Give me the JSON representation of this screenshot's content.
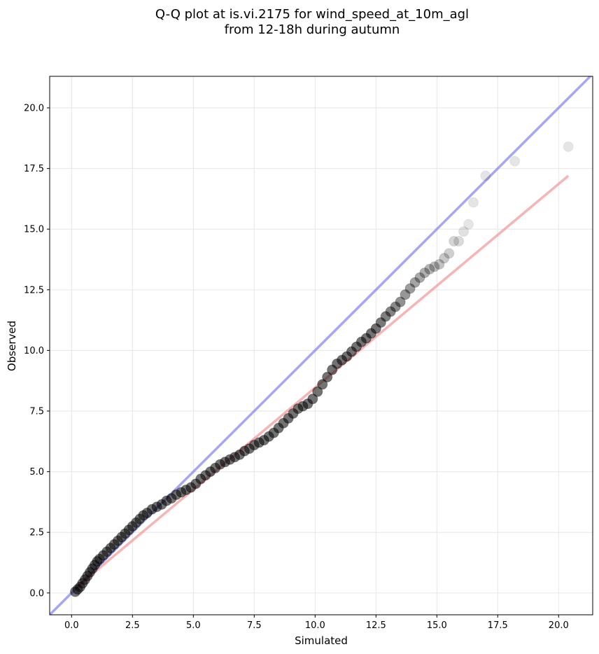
{
  "chart_data": {
    "type": "scatter",
    "title": [
      "Q-Q plot at is.vi.2175 for wind_speed_at_10m_agl",
      "from 12-18h during autumn"
    ],
    "xlabel": "Simulated",
    "ylabel": "Observed",
    "xlim": [
      -0.9,
      21.4
    ],
    "ylim": [
      -0.9,
      21.3
    ],
    "x_ticks": [
      "0.0",
      "2.5",
      "5.0",
      "7.5",
      "10.0",
      "12.5",
      "15.0",
      "17.5",
      "20.0"
    ],
    "y_ticks": [
      "0.0",
      "2.5",
      "5.0",
      "7.5",
      "10.0",
      "12.5",
      "15.0",
      "17.5",
      "20.0"
    ],
    "grid": true,
    "colors": {
      "points": "#000000",
      "identity_line": "#7777ee",
      "fit_line": "#f28c8c"
    },
    "reference_lines": [
      {
        "kind": "identity",
        "x": [
          -0.9,
          21.4
        ],
        "y": [
          -0.9,
          21.4
        ]
      },
      {
        "kind": "fit",
        "x": [
          0.1,
          20.4
        ],
        "y": [
          0.15,
          17.2
        ]
      }
    ],
    "series": [
      {
        "x": [
          0.15,
          0.25,
          0.35,
          0.45,
          0.55,
          0.65,
          0.75,
          0.85,
          0.95,
          1.05,
          1.15,
          1.3,
          1.45,
          1.6,
          1.75,
          1.9,
          2.05,
          2.2,
          2.35,
          2.5,
          2.65,
          2.8,
          2.95,
          3.1,
          3.3,
          3.5,
          3.7,
          3.9,
          4.1,
          4.3,
          4.5,
          4.7,
          4.9,
          5.1,
          5.3,
          5.5,
          5.7,
          5.9,
          6.1,
          6.3,
          6.5,
          6.7,
          6.9,
          7.1,
          7.3,
          7.5,
          7.7,
          7.9,
          8.1,
          8.3,
          8.5,
          8.7,
          8.9,
          9.1,
          9.3,
          9.5,
          9.7,
          9.9,
          10.1,
          10.3,
          10.5,
          10.7,
          10.9,
          11.1,
          11.3,
          11.5,
          11.7,
          11.9,
          12.1,
          12.3,
          12.5,
          12.7,
          12.9,
          13.1,
          13.3,
          13.5,
          13.7,
          13.9,
          14.1,
          14.3,
          14.5,
          14.7,
          14.9,
          15.1,
          15.3,
          15.5,
          15.7,
          15.9,
          16.1,
          16.3,
          16.5,
          17.0,
          18.2,
          20.4
        ],
        "y": [
          0.05,
          0.15,
          0.25,
          0.4,
          0.55,
          0.7,
          0.85,
          1.0,
          1.15,
          1.3,
          1.4,
          1.55,
          1.7,
          1.85,
          2.0,
          2.15,
          2.3,
          2.45,
          2.6,
          2.75,
          2.9,
          3.05,
          3.2,
          3.3,
          3.45,
          3.55,
          3.65,
          3.8,
          3.9,
          4.05,
          4.15,
          4.25,
          4.35,
          4.5,
          4.7,
          4.85,
          5.0,
          5.15,
          5.3,
          5.4,
          5.5,
          5.6,
          5.7,
          5.85,
          5.95,
          6.1,
          6.2,
          6.3,
          6.45,
          6.6,
          6.8,
          7.0,
          7.2,
          7.4,
          7.6,
          7.7,
          7.8,
          8.0,
          8.3,
          8.6,
          8.9,
          9.2,
          9.45,
          9.6,
          9.75,
          9.95,
          10.15,
          10.35,
          10.5,
          10.7,
          10.9,
          11.15,
          11.4,
          11.6,
          11.8,
          12.0,
          12.3,
          12.55,
          12.8,
          13.0,
          13.2,
          13.35,
          13.45,
          13.55,
          13.8,
          14.0,
          14.5,
          14.5,
          14.9,
          15.2,
          16.1,
          17.2,
          17.8,
          18.4
        ]
      }
    ]
  }
}
